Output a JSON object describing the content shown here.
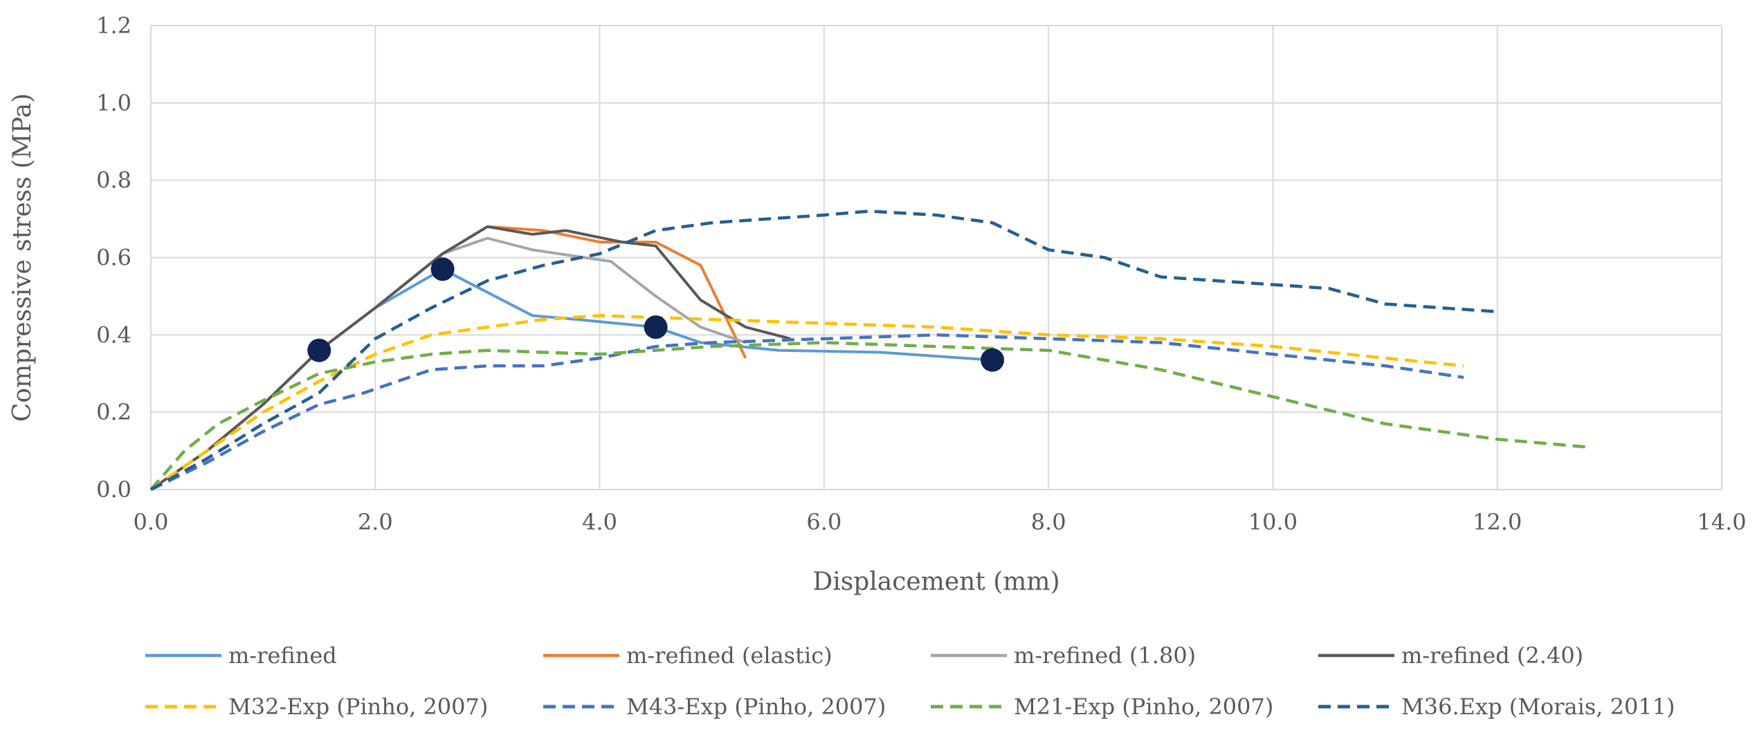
{
  "chart_data": {
    "type": "line",
    "title": "",
    "xlabel": "Displacement  (mm)",
    "ylabel": "Compressive  stress  (MPa)",
    "xlim": [
      0,
      14
    ],
    "ylim": [
      0,
      1.2
    ],
    "x_ticks": [
      0,
      2,
      4,
      6,
      8,
      10,
      12,
      14
    ],
    "y_ticks": [
      0,
      0.2,
      0.4,
      0.6,
      0.8,
      1.0,
      1.2
    ],
    "x_tick_labels": [
      "0.0",
      "2.0",
      "4.0",
      "6.0",
      "8.0",
      "10.0",
      "12.0",
      "14.0"
    ],
    "y_tick_labels": [
      "0.0",
      "0.2",
      "0.4",
      "0.6",
      "0.8",
      "1.0",
      "1.2"
    ],
    "grid": true,
    "legend_position": "bottom",
    "series": [
      {
        "name": "m-refined",
        "color": "#5B9BD5",
        "dash": "solid",
        "points": [
          [
            0,
            0
          ],
          [
            0.5,
            0.1
          ],
          [
            1.0,
            0.22
          ],
          [
            1.5,
            0.36
          ],
          [
            2.0,
            0.47
          ],
          [
            2.6,
            0.57
          ],
          [
            3.0,
            0.51
          ],
          [
            3.4,
            0.45
          ],
          [
            3.8,
            0.44
          ],
          [
            4.5,
            0.42
          ],
          [
            4.9,
            0.38
          ],
          [
            5.6,
            0.36
          ],
          [
            6.5,
            0.355
          ],
          [
            7.5,
            0.335
          ]
        ]
      },
      {
        "name": "m-refined (elastic)",
        "color": "#ED7D31",
        "dash": "solid",
        "points": [
          [
            0,
            0
          ],
          [
            0.5,
            0.1
          ],
          [
            1.0,
            0.22
          ],
          [
            1.5,
            0.36
          ],
          [
            2.0,
            0.47
          ],
          [
            2.6,
            0.61
          ],
          [
            3.0,
            0.68
          ],
          [
            3.5,
            0.67
          ],
          [
            4.0,
            0.64
          ],
          [
            4.5,
            0.64
          ],
          [
            4.9,
            0.58
          ],
          [
            5.3,
            0.34
          ]
        ]
      },
      {
        "name": "m-refined (1.80)",
        "color": "#A5A5A5",
        "dash": "solid",
        "points": [
          [
            0,
            0
          ],
          [
            0.5,
            0.1
          ],
          [
            1.0,
            0.22
          ],
          [
            1.5,
            0.36
          ],
          [
            2.0,
            0.47
          ],
          [
            2.6,
            0.61
          ],
          [
            3.0,
            0.65
          ],
          [
            3.4,
            0.62
          ],
          [
            4.1,
            0.59
          ],
          [
            4.5,
            0.5
          ],
          [
            4.9,
            0.42
          ],
          [
            5.3,
            0.38
          ]
        ]
      },
      {
        "name": "m-refined (2.40)",
        "color": "#595959",
        "dash": "solid",
        "points": [
          [
            0,
            0
          ],
          [
            0.5,
            0.1
          ],
          [
            1.0,
            0.22
          ],
          [
            1.5,
            0.36
          ],
          [
            2.0,
            0.47
          ],
          [
            2.6,
            0.61
          ],
          [
            3.0,
            0.68
          ],
          [
            3.4,
            0.66
          ],
          [
            3.7,
            0.67
          ],
          [
            4.2,
            0.64
          ],
          [
            4.5,
            0.63
          ],
          [
            4.9,
            0.49
          ],
          [
            5.3,
            0.42
          ],
          [
            5.7,
            0.39
          ]
        ]
      },
      {
        "name": "M32-Exp (Pinho, 2007)",
        "color": "#FFC000",
        "dash": "dashed",
        "points": [
          [
            0,
            0
          ],
          [
            0.5,
            0.1
          ],
          [
            1.0,
            0.2
          ],
          [
            1.5,
            0.28
          ],
          [
            2.0,
            0.35
          ],
          [
            2.5,
            0.4
          ],
          [
            3.0,
            0.42
          ],
          [
            3.5,
            0.44
          ],
          [
            4.0,
            0.45
          ],
          [
            5.0,
            0.44
          ],
          [
            6.0,
            0.43
          ],
          [
            7.0,
            0.42
          ],
          [
            8.0,
            0.4
          ],
          [
            9.0,
            0.39
          ],
          [
            10.0,
            0.37
          ],
          [
            11.0,
            0.34
          ],
          [
            11.7,
            0.32
          ]
        ]
      },
      {
        "name": "M43-Exp (Pinho, 2007)",
        "color": "#4472C4",
        "dash": "dashed",
        "points": [
          [
            0,
            0
          ],
          [
            0.5,
            0.07
          ],
          [
            1.0,
            0.15
          ],
          [
            1.5,
            0.22
          ],
          [
            1.9,
            0.25
          ],
          [
            2.5,
            0.31
          ],
          [
            3.0,
            0.32
          ],
          [
            3.5,
            0.32
          ],
          [
            4.0,
            0.34
          ],
          [
            4.5,
            0.37
          ],
          [
            5.0,
            0.38
          ],
          [
            6.0,
            0.39
          ],
          [
            7.0,
            0.4
          ],
          [
            8.0,
            0.39
          ],
          [
            9.0,
            0.38
          ],
          [
            10.0,
            0.35
          ],
          [
            11.0,
            0.32
          ],
          [
            11.7,
            0.29
          ]
        ]
      },
      {
        "name": "M21-Exp (Pinho, 2007)",
        "color": "#70AD47",
        "dash": "dashed",
        "points": [
          [
            0,
            0
          ],
          [
            0.3,
            0.1
          ],
          [
            0.6,
            0.17
          ],
          [
            1.0,
            0.23
          ],
          [
            1.5,
            0.3
          ],
          [
            2.0,
            0.33
          ],
          [
            2.5,
            0.35
          ],
          [
            3.0,
            0.36
          ],
          [
            4.0,
            0.35
          ],
          [
            5.0,
            0.37
          ],
          [
            6.0,
            0.38
          ],
          [
            7.0,
            0.37
          ],
          [
            8.0,
            0.36
          ],
          [
            9.0,
            0.31
          ],
          [
            10.0,
            0.24
          ],
          [
            11.0,
            0.17
          ],
          [
            12.0,
            0.13
          ],
          [
            12.8,
            0.11
          ]
        ]
      },
      {
        "name": "M36.Exp (Morais, 2011)",
        "color": "#255E91",
        "dash": "dashed",
        "points": [
          [
            0,
            0
          ],
          [
            0.5,
            0.08
          ],
          [
            1.0,
            0.17
          ],
          [
            1.5,
            0.25
          ],
          [
            2.0,
            0.39
          ],
          [
            2.5,
            0.47
          ],
          [
            3.0,
            0.54
          ],
          [
            3.5,
            0.58
          ],
          [
            4.0,
            0.61
          ],
          [
            4.5,
            0.67
          ],
          [
            5.0,
            0.69
          ],
          [
            6.0,
            0.71
          ],
          [
            6.4,
            0.72
          ],
          [
            7.0,
            0.71
          ],
          [
            7.5,
            0.69
          ],
          [
            8.0,
            0.62
          ],
          [
            8.5,
            0.6
          ],
          [
            9.0,
            0.55
          ],
          [
            10.0,
            0.53
          ],
          [
            10.5,
            0.52
          ],
          [
            11.0,
            0.48
          ],
          [
            12.0,
            0.46
          ]
        ]
      }
    ],
    "markers": {
      "color": "#0F2453",
      "points": [
        [
          1.5,
          0.36
        ],
        [
          2.6,
          0.57
        ],
        [
          4.5,
          0.42
        ],
        [
          7.5,
          0.335
        ]
      ]
    }
  }
}
